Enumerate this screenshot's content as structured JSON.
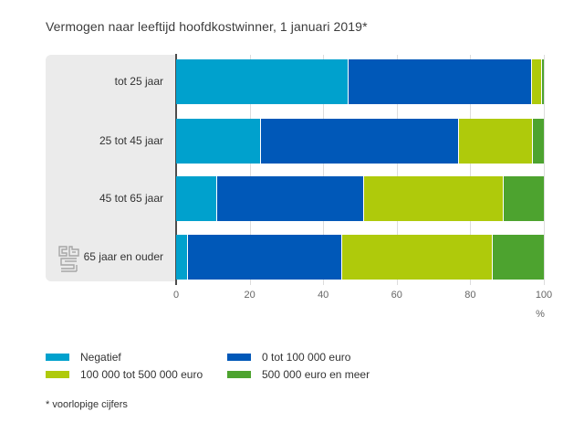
{
  "title": "Vermogen naar leeftijd hoofdkostwinner, 1 januari 2019*",
  "footnote": "* voorlopige cijfers",
  "icons": {
    "watermark": "cbs-logo-icon"
  },
  "colors": {
    "panel_background": "#ebebeb",
    "gridline": "#dcdcdc",
    "zero_axis": "#4c4c4c",
    "title_text": "#3c3c3c",
    "label_text": "#333333",
    "tick_text": "#666666"
  },
  "chart_data": {
    "type": "bar",
    "orientation": "horizontal",
    "stacked": true,
    "grid": true,
    "legend_position": "bottom",
    "unit": "%",
    "xlabel": "%",
    "xlim": [
      0,
      100
    ],
    "x_ticks": [
      0,
      20,
      40,
      60,
      80,
      100
    ],
    "categories": [
      "tot 25 jaar",
      "25 tot 45 jaar",
      "45 tot 65 jaar",
      "65 jaar en ouder"
    ],
    "series": [
      {
        "name": "Negatief",
        "color": "#00a1cd",
        "values": [
          47,
          23,
          11,
          3
        ]
      },
      {
        "name": "0 tot 100 000 euro",
        "color": "#0058b8",
        "values": [
          50,
          54,
          40,
          42
        ]
      },
      {
        "name": "100 000 tot 500 000 euro",
        "color": "#afca0b",
        "values": [
          2.5,
          20,
          38,
          41
        ]
      },
      {
        "name": "500 000 euro en meer",
        "color": "#4da32f",
        "values": [
          0.5,
          3,
          11,
          14
        ]
      }
    ]
  }
}
